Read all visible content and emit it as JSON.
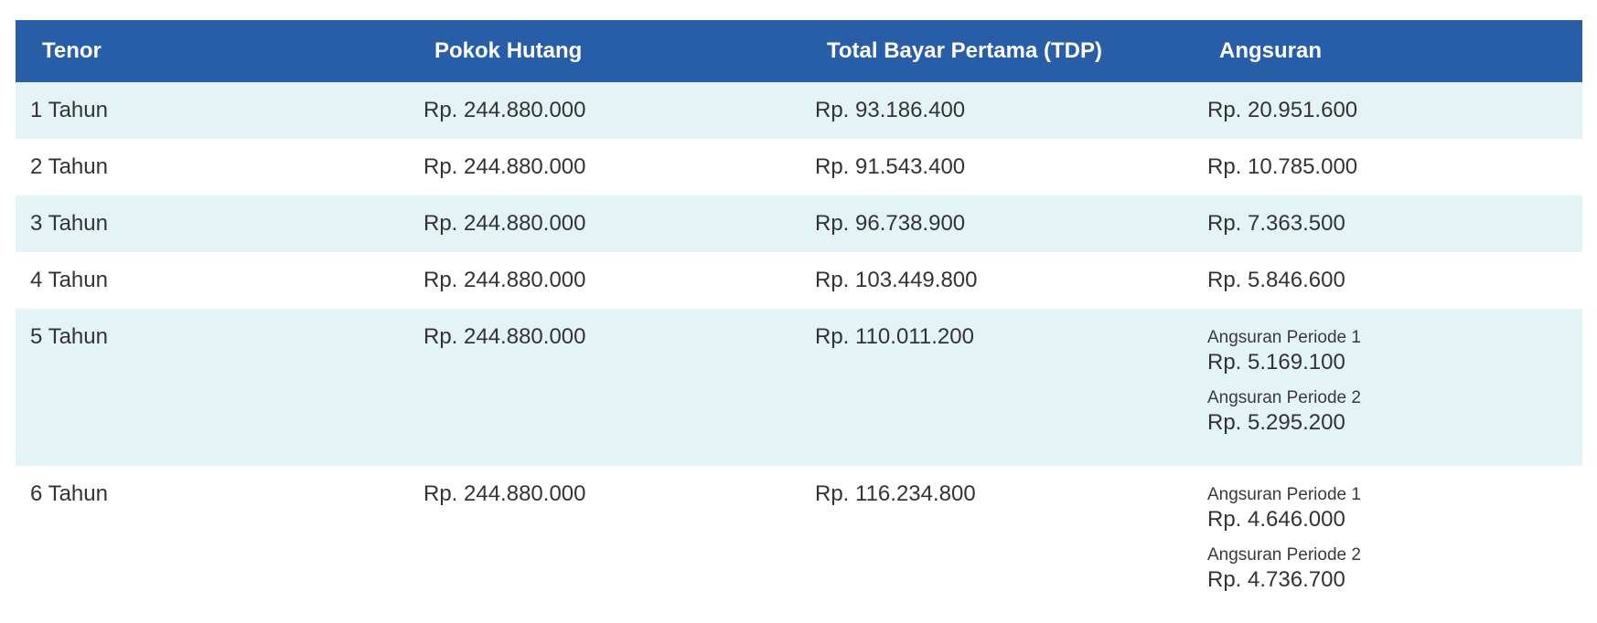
{
  "table": {
    "headers": [
      "Tenor",
      "Pokok Hutang",
      "Total Bayar Pertama (TDP)",
      "Angsuran"
    ],
    "rows": [
      {
        "tenor": "1 Tahun",
        "pokok": "Rp. 244.880.000",
        "tdp": "Rp. 93.186.400",
        "angsuran": "Rp. 20.951.600"
      },
      {
        "tenor": "2 Tahun",
        "pokok": "Rp. 244.880.000",
        "tdp": "Rp. 91.543.400",
        "angsuran": "Rp. 10.785.000"
      },
      {
        "tenor": "3 Tahun",
        "pokok": "Rp. 244.880.000",
        "tdp": "Rp. 96.738.900",
        "angsuran": "Rp. 7.363.500"
      },
      {
        "tenor": "4 Tahun",
        "pokok": "Rp. 244.880.000",
        "tdp": "Rp. 103.449.800",
        "angsuran": "Rp. 5.846.600"
      },
      {
        "tenor": "5 Tahun",
        "pokok": "Rp. 244.880.000",
        "tdp": "Rp. 110.011.200",
        "periods": [
          {
            "label": "Angsuran Periode 1",
            "value": "Rp. 5.169.100"
          },
          {
            "label": "Angsuran Periode 2",
            "value": "Rp. 5.295.200"
          }
        ]
      },
      {
        "tenor": "6 Tahun",
        "pokok": "Rp. 244.880.000",
        "tdp": "Rp. 116.234.800",
        "periods": [
          {
            "label": "Angsuran Periode 1",
            "value": "Rp. 4.646.000"
          },
          {
            "label": "Angsuran Periode 2",
            "value": "Rp. 4.736.700"
          }
        ]
      }
    ]
  },
  "colors": {
    "header_bg": "#285da8",
    "row_alt_bg": "#e4f4f6",
    "row_bg": "#ffffff",
    "text": "#333333"
  }
}
